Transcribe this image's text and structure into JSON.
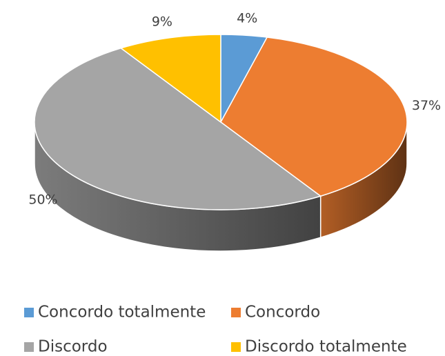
{
  "chart_data": {
    "type": "pie3d",
    "categories": [
      "Concordo totalmente",
      "Concordo",
      "Discordo",
      "Discordo totalmente"
    ],
    "values": [
      4,
      37,
      50,
      9
    ],
    "value_labels": [
      "4%",
      "37%",
      "50%",
      "9%"
    ],
    "colors": [
      "#5b9bd5",
      "#ed7d31",
      "#a5a5a5",
      "#ffc000"
    ],
    "legend": "bottom"
  }
}
